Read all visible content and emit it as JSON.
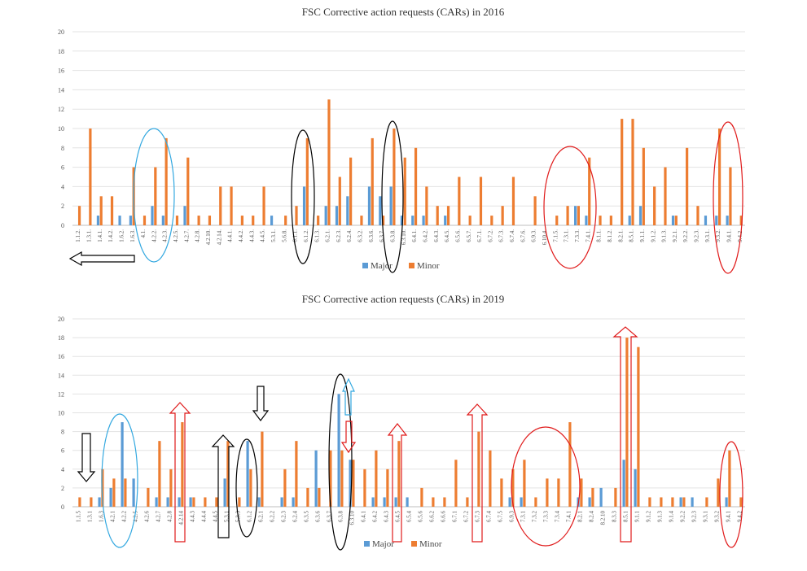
{
  "chart_data": [
    {
      "type": "bar",
      "title": "FSC Corrective action requests (CARs) in 2016",
      "xlabel": "",
      "ylabel": "",
      "ylim": [
        0,
        20
      ],
      "yticks": [
        0,
        2,
        4,
        6,
        8,
        10,
        12,
        14,
        16,
        18,
        20
      ],
      "grid": true,
      "legend_placement": "bottom",
      "categories": [
        "1.1.2.",
        "1.3.1.",
        "1.4.1.",
        "1.4.2.",
        "1.6.2.",
        "1.6.3.",
        "4.1.",
        "4.2.2.",
        "4.2.3.",
        "4.2.5.",
        "4.2.7.",
        "4.2.8.",
        "4.2.10.",
        "4.2.14.",
        "4.4.1.",
        "4.4.2.",
        "4.4.3.",
        "4.4.5.",
        "5.3.1.",
        "5.6.8.",
        "6.1.1.",
        "6.1.2.",
        "6.1.3.",
        "6.2.1.",
        "6.2.3.",
        "6.2.4.",
        "6.3.2.",
        "6.3.6.",
        "6.3.7.",
        "6.3.8.",
        "6.3.10.",
        "6.4.1.",
        "6.4.2.",
        "6.4.3.",
        "6.4.5.",
        "6.5.6.",
        "6.5.7.",
        "6.7.1.",
        "6.7.2.",
        "6.7.3.",
        "6.7.4.",
        "6.7.6.",
        "6.9.3.",
        "6.10.4.",
        "7.1.5.",
        "7.3.1.",
        "7.3.3.",
        "7.4.1.",
        "8.1.1.",
        "8.1.2.",
        "8.2.1.",
        "8.5.1.",
        "9.1.1.",
        "9.1.2.",
        "9.1.3.",
        "9.2.1.",
        "9.2.2.",
        "9.2.3.",
        "9.3.1.",
        "9.3.2.",
        "9.4.1.",
        "9.4.2."
      ],
      "series": [
        {
          "name": "Major",
          "color": "#5B9BD5",
          "values": [
            0,
            0,
            1,
            0,
            1,
            1,
            0,
            2,
            1,
            0,
            2,
            0,
            0,
            0,
            0,
            0,
            0,
            0,
            1,
            0,
            0,
            4,
            0,
            2,
            2,
            3,
            0,
            4,
            3,
            4,
            1,
            1,
            1,
            0,
            1,
            0,
            0,
            0,
            0,
            0,
            0,
            0,
            0,
            0,
            0,
            0,
            2,
            1,
            0,
            0,
            0,
            1,
            2,
            0,
            0,
            1,
            0,
            0,
            1,
            1,
            1,
            0
          ]
        },
        {
          "name": "Minor",
          "color": "#ED7D31",
          "values": [
            2,
            10,
            3,
            3,
            0,
            6,
            1,
            6,
            9,
            1,
            7,
            1,
            1,
            4,
            4,
            1,
            1,
            4,
            0,
            1,
            2,
            9,
            1,
            13,
            5,
            7,
            1,
            9,
            1,
            10,
            7,
            8,
            4,
            2,
            2,
            5,
            1,
            5,
            1,
            2,
            5,
            0,
            3,
            0,
            1,
            2,
            2,
            7,
            1,
            1,
            11,
            11,
            8,
            4,
            6,
            1,
            8,
            2,
            0,
            10,
            6,
            1
          ]
        }
      ]
    },
    {
      "type": "bar",
      "title": "FSC Corrective action requests (CARs) in 2019",
      "xlabel": "",
      "ylabel": "",
      "ylim": [
        0,
        20
      ],
      "yticks": [
        0,
        2,
        4,
        6,
        8,
        10,
        12,
        14,
        16,
        18,
        20
      ],
      "grid": true,
      "legend_placement": "bottom",
      "categories": [
        "1.1.5",
        "1.3.1",
        "1.6.3",
        "4.2.1",
        "4.2.2",
        "4.2.5",
        "4.2.6",
        "4.2.7",
        "4.2.8",
        "4.2.14",
        "4.4.3",
        "4.4.4",
        "4.4.5",
        "5.3.1",
        "5.3.3",
        "6.1.2",
        "6.2.1",
        "6.2.2",
        "6.2.3",
        "6.2.4",
        "6.3.5",
        "6.3.6",
        "6.3.7",
        "6.3.8",
        "6.3.10",
        "6.4.1",
        "6.4.2",
        "6.4.3",
        "6.4.5",
        "6.5.4",
        "6.5.6",
        "6.6.2",
        "6.6.6",
        "6.7.1",
        "6.7.2",
        "6.7.3",
        "6.7.4",
        "6.7.5",
        "6.9.3",
        "7.3.1",
        "7.3.2",
        "7.3.3",
        "7.3.4",
        "7.4.1",
        "8.2.1",
        "8.2.4",
        "8.2.10",
        "8.3.3",
        "8.5.1",
        "9.1.1",
        "9.1.2",
        "9.1.3",
        "9.1.4",
        "9.2.2",
        "9.2.3",
        "9.3.1",
        "9.3.2",
        "9.4.1",
        "9.4.2"
      ],
      "series": [
        {
          "name": "Major",
          "color": "#5B9BD5",
          "values": [
            0,
            0,
            1,
            2,
            9,
            3,
            0,
            1,
            1,
            1,
            1,
            0,
            0,
            3,
            0,
            7,
            1,
            0,
            1,
            1,
            0,
            6,
            0,
            12,
            5,
            0,
            1,
            1,
            1,
            1,
            0,
            0,
            0,
            0,
            0,
            0,
            0,
            0,
            1,
            1,
            0,
            0,
            0,
            0,
            1,
            1,
            2,
            0,
            5,
            4,
            0,
            0,
            0,
            1,
            1,
            0,
            0,
            1,
            0
          ]
        },
        {
          "name": "Minor",
          "color": "#ED7D31",
          "values": [
            1,
            1,
            4,
            3,
            3,
            0,
            2,
            7,
            4,
            9,
            1,
            1,
            1,
            7,
            1,
            4,
            8,
            0,
            4,
            7,
            2,
            2,
            6,
            6,
            5,
            4,
            6,
            4,
            7,
            0,
            2,
            1,
            1,
            5,
            1,
            8,
            6,
            3,
            4,
            5,
            1,
            3,
            3,
            9,
            3,
            2,
            0,
            2,
            18,
            17,
            1,
            1,
            1,
            1,
            0,
            1,
            3,
            6,
            1
          ]
        }
      ]
    }
  ]
}
